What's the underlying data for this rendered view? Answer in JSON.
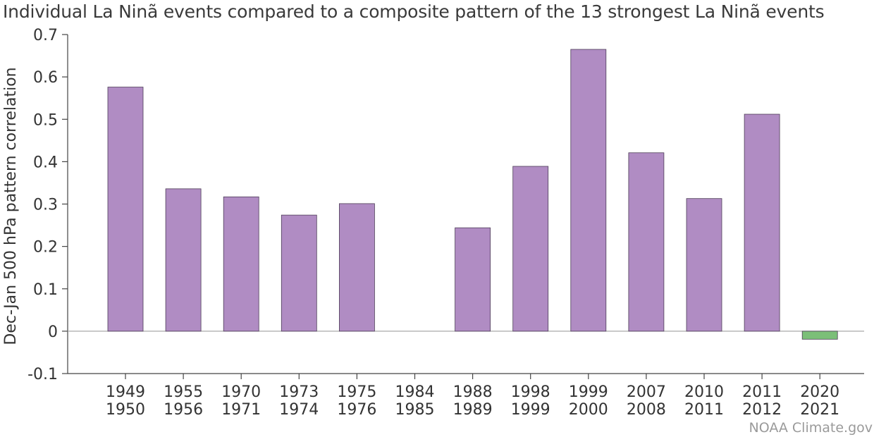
{
  "title": "Individual La Ninã events compared to a composite pattern of the 13 strongest La Ninã events",
  "credit": "NOAA Climate.gov",
  "chart_data": {
    "type": "bar",
    "title": "Individual La Ninã events compared to a composite pattern of the 13 strongest La Ninã events",
    "xlabel": "",
    "ylabel": "Dec-Jan 500 hPa pattern correlation",
    "ylim": [
      -0.1,
      0.7
    ],
    "yticks": [
      -0.1,
      0,
      0.1,
      0.2,
      0.3,
      0.4,
      0.5,
      0.6,
      0.7
    ],
    "ytick_labels": [
      "-0.1",
      "0",
      "0.1",
      "0.2",
      "0.3",
      "0.4",
      "0.5",
      "0.6",
      "0.7"
    ],
    "grid": false,
    "categories": [
      [
        "1949",
        "1950"
      ],
      [
        "1955",
        "1956"
      ],
      [
        "1970",
        "1971"
      ],
      [
        "1973",
        "1974"
      ],
      [
        "1975",
        "1976"
      ],
      [
        "1984",
        "1985"
      ],
      [
        "1988",
        "1989"
      ],
      [
        "1998",
        "1999"
      ],
      [
        "1999",
        "2000"
      ],
      [
        "2007",
        "2008"
      ],
      [
        "2010",
        "2011"
      ],
      [
        "2011",
        "2012"
      ],
      [
        "2020",
        "2021"
      ]
    ],
    "values": [
      0.576,
      0.336,
      0.317,
      0.274,
      0.301,
      0.0,
      0.244,
      0.389,
      0.665,
      0.421,
      0.313,
      0.512,
      -0.019
    ],
    "colors": {
      "positive": "#b08cc3",
      "negative": "#7bbf78",
      "bar_edge": "#4d3d57",
      "axis": "#444444",
      "zero_line": "#aaaaaa"
    }
  }
}
